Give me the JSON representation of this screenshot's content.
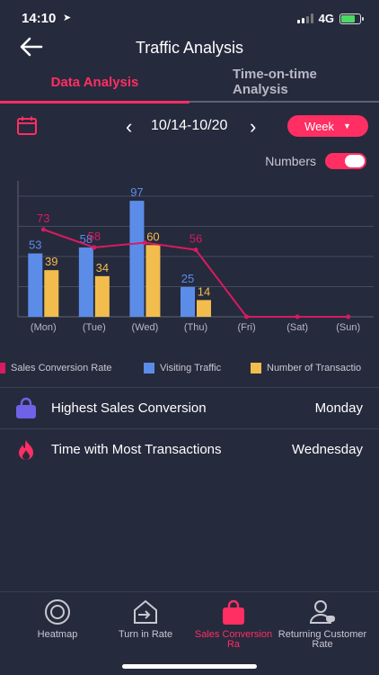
{
  "status_bar": {
    "time": "14:10",
    "network": "4G"
  },
  "nav": {
    "title": "Traffic Analysis"
  },
  "tabs": [
    {
      "label": "Data Analysis",
      "active": true
    },
    {
      "label": "Time-on-time Analysis",
      "active": false
    }
  ],
  "toolbar": {
    "date_range": "10/14-10/20",
    "prev": "‹",
    "next": "›",
    "period": "Week"
  },
  "numbers_toggle": {
    "label": "Numbers",
    "on": true
  },
  "chart_data": {
    "type": "bar",
    "categories": [
      "(Mon)",
      "(Tue)",
      "(Wed)",
      "(Thu)",
      "(Fri)",
      "(Sat)",
      "(Sun)"
    ],
    "series": [
      {
        "name": "Visiting Traffic",
        "kind": "bar",
        "color": "#5b8de8",
        "values": [
          53,
          58,
          97,
          25,
          0,
          0,
          0
        ],
        "labels": [
          "53",
          "58",
          "97",
          "25",
          "",
          "",
          ""
        ]
      },
      {
        "name": "Number of Transactio",
        "kind": "bar",
        "color": "#f2bd4c",
        "values": [
          39,
          34,
          60,
          14,
          0,
          0,
          0
        ],
        "labels": [
          "39",
          "34",
          "60",
          "14",
          "",
          "",
          ""
        ]
      },
      {
        "name": "Sales Conversion Rate",
        "kind": "line",
        "color": "#d81b60",
        "values": [
          73,
          58,
          62,
          56,
          0,
          0,
          0
        ],
        "labels": [
          "73",
          "58",
          "",
          "56",
          "",
          "",
          ""
        ]
      }
    ],
    "ylim": [
      0,
      100
    ],
    "grid": true,
    "legend": "bottom"
  },
  "legend": [
    {
      "label": "Sales Conversion Rate",
      "color": "#d81b60"
    },
    {
      "label": "Visiting Traffic",
      "color": "#5b8de8"
    },
    {
      "label": "Number of Transactio",
      "color": "#f2bd4c"
    }
  ],
  "info": [
    {
      "label": "Highest Sales Conversion",
      "value": "Monday",
      "icon": "bag-icon"
    },
    {
      "label": "Time with Most Transactions",
      "value": "Wednesday",
      "icon": "flame-icon"
    }
  ],
  "bottom_nav": [
    {
      "label": "Heatmap",
      "icon": "heatmap-icon"
    },
    {
      "label": "Turn in Rate",
      "icon": "turn-in-icon"
    },
    {
      "label": "Sales Conversion Ra",
      "icon": "shopping-bag-icon",
      "active": true
    },
    {
      "label": "Returning Customer Rate",
      "icon": "returning-customer-icon"
    }
  ],
  "colors": {
    "accent": "#ff2e63",
    "background": "#262a3d",
    "traffic": "#5b8de8",
    "transactions": "#f2bd4c",
    "conversion": "#d81b60"
  }
}
